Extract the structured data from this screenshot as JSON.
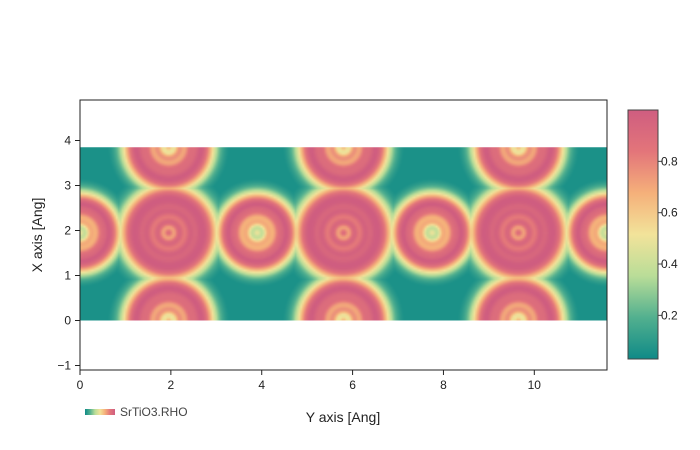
{
  "chart_data": {
    "type": "heatmap",
    "title": "",
    "xlabel": "Y axis [Ang]",
    "ylabel": "X axis [Ang]",
    "xlim": [
      0,
      11.6
    ],
    "ylim": [
      -1.1,
      4.9
    ],
    "x_ticks": [
      0,
      2,
      4,
      6,
      8,
      10
    ],
    "y_ticks": [
      -1,
      0,
      1,
      2,
      3,
      4
    ],
    "x_tick_labels": [
      "0",
      "2",
      "4",
      "6",
      "8",
      "10"
    ],
    "y_tick_labels": [
      "−1",
      "0",
      "1",
      "2",
      "3",
      "4"
    ],
    "data_extent": {
      "x": [
        0,
        11.6
      ],
      "y": [
        0,
        3.85
      ]
    },
    "colorbar": {
      "range": [
        0.03,
        1.0
      ],
      "ticks": [
        0.2,
        0.4,
        0.6,
        0.8
      ],
      "tick_labels": [
        "0.2",
        "0.4",
        "0.6",
        "0.8"
      ],
      "colors": [
        "#0f8a87",
        "#52b08f",
        "#b9dd98",
        "#f2e39a",
        "#f5b07a",
        "#e3757a",
        "#cf5d80"
      ]
    },
    "atoms": [
      {
        "x": 1.95,
        "y": 1.95,
        "type": "large"
      },
      {
        "x": 5.8,
        "y": 1.95,
        "type": "large"
      },
      {
        "x": 9.65,
        "y": 1.95,
        "type": "large"
      },
      {
        "x": 1.95,
        "y": 0.0,
        "type": "medium"
      },
      {
        "x": 5.8,
        "y": 0.0,
        "type": "medium"
      },
      {
        "x": 9.65,
        "y": 0.0,
        "type": "medium"
      },
      {
        "x": 1.95,
        "y": 3.85,
        "type": "medium"
      },
      {
        "x": 5.8,
        "y": 3.85,
        "type": "medium"
      },
      {
        "x": 9.65,
        "y": 3.85,
        "type": "medium"
      },
      {
        "x": 0.0,
        "y": 1.95,
        "type": "small"
      },
      {
        "x": 3.9,
        "y": 1.95,
        "type": "small"
      },
      {
        "x": 7.75,
        "y": 1.95,
        "type": "small"
      },
      {
        "x": 11.6,
        "y": 1.95,
        "type": "small"
      }
    ],
    "legend": {
      "label": "SrTiO3.RHO",
      "position": "bottom-left"
    },
    "grid": false
  }
}
